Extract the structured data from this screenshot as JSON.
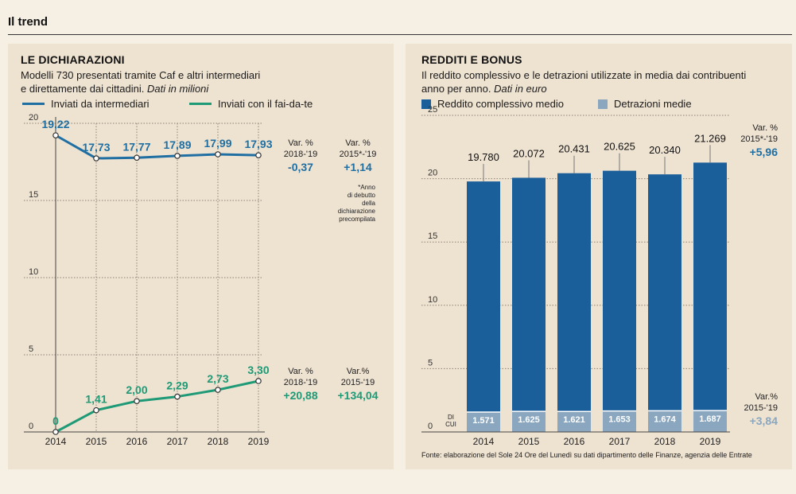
{
  "header": {
    "title": "Il trend"
  },
  "left_panel": {
    "title": "LE DICHIARAZIONI",
    "subtitle": "Modelli 730 presentati tramite Caf e altri intermediari",
    "subtitle2_plain": "e direttamente dai cittadini. ",
    "subtitle2_italic": "Dati in milioni",
    "legend": [
      {
        "label": "Inviati da intermediari",
        "color": "#1f6fa3"
      },
      {
        "label": "Inviati con il fai-da-te",
        "color": "#1e9a76"
      }
    ],
    "var_intermediari": {
      "h1": "Var. %",
      "p1": "2018-'19",
      "v1": "-0,37",
      "h2": "Var. %",
      "p2": "2015*-'19",
      "v2": "+1,14"
    },
    "var_faidate": {
      "h1": "Var. %",
      "p1": "2018-'19",
      "v1": "+20,88",
      "h2": "Var.%",
      "p2": "2015-'19",
      "v2": "+134,04"
    },
    "note": [
      "*Anno",
      "di debutto",
      "della",
      "dichiarazione",
      "precompilata"
    ]
  },
  "right_panel": {
    "title": "REDDITI E BONUS",
    "subtitle": "Il reddito complessivo e le detrazioni utilizzate in media dai contribuenti",
    "subtitle2_plain": "anno per anno. ",
    "subtitle2_italic": "Dati in euro",
    "legend": [
      {
        "label": "Reddito complessivo medio",
        "color": "#1a5e9a"
      },
      {
        "label": "Detrazioni medie",
        "color": "#8aa7bf"
      }
    ],
    "var_reddito": {
      "h": "Var. %",
      "p": "2015*-'19",
      "v": "+5,96"
    },
    "var_detrazioni": {
      "h": "Var.%",
      "p": "2015-'19",
      "v": "+3,84"
    },
    "di_cui": [
      "DI",
      "CUI"
    ],
    "source": "Fonte: elaborazione del Sole 24 Ore  del Lunedì su dati dipartimento delle Finanze, agenzia delle Entrate"
  },
  "colors": {
    "intermediari": "#1f6fa3",
    "faidate": "#1e9a76",
    "reddito": "#1a5e9a",
    "detrazioni": "#8aa7bf",
    "var_blue": "#1f6fa3",
    "var_green": "#1e9a76"
  },
  "chart_data": [
    {
      "type": "line",
      "x": [
        2014,
        2015,
        2016,
        2017,
        2018,
        2019
      ],
      "yticks": [
        0,
        5,
        10,
        15,
        20
      ],
      "ylim": [
        0,
        20
      ],
      "series": [
        {
          "name": "Inviati da intermediari",
          "values": [
            19.22,
            17.73,
            17.77,
            17.89,
            17.99,
            17.93
          ],
          "labels": [
            "19,22",
            "17,73",
            "17,77",
            "17,89",
            "17,99",
            "17,93"
          ]
        },
        {
          "name": "Inviati con il fai-da-te",
          "values": [
            0,
            1.41,
            2.0,
            2.29,
            2.73,
            3.3
          ],
          "labels": [
            "0",
            "1,41",
            "2,00",
            "2,29",
            "2,73",
            "3,30"
          ]
        }
      ]
    },
    {
      "type": "bar",
      "categories": [
        "2014",
        "2015",
        "2016",
        "2017",
        "2018",
        "2019"
      ],
      "yticks": [
        0,
        5,
        10,
        15,
        20,
        25
      ],
      "ylim": [
        0,
        25
      ],
      "series": [
        {
          "name": "Reddito complessivo medio",
          "values": [
            19780,
            20072,
            20431,
            20625,
            20340,
            21269
          ],
          "labels": [
            "19.780",
            "20.072",
            "20.431",
            "20.625",
            "20.340",
            "21.269"
          ]
        },
        {
          "name": "Detrazioni medie",
          "values": [
            1571,
            1625,
            1621,
            1653,
            1674,
            1687
          ],
          "labels": [
            "1.571",
            "1.625",
            "1.621",
            "1.653",
            "1.674",
            "1.687"
          ]
        }
      ]
    }
  ]
}
